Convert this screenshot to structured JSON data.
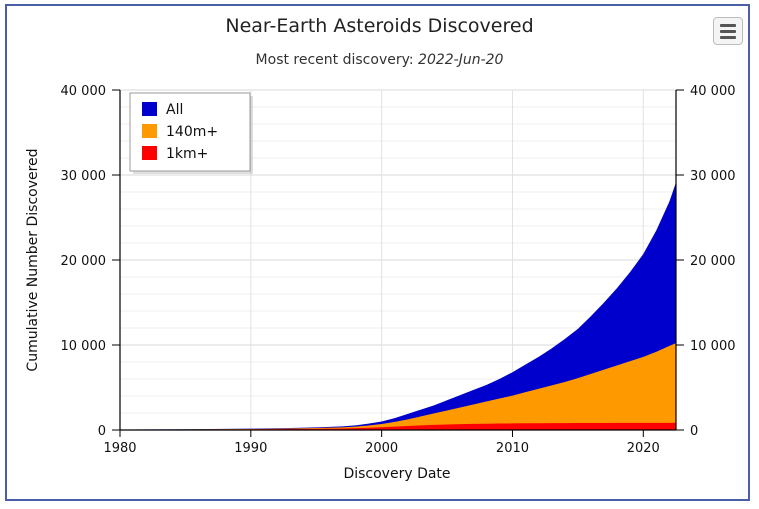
{
  "chart_data": {
    "type": "area",
    "title": "Near-Earth Asteroids Discovered",
    "subtitle_prefix": "Most recent discovery: ",
    "subtitle_date": "2022-Jun-20",
    "xlabel": "Discovery Date",
    "ylabel": "Cumulative Number Discovered",
    "xlim": [
      1980,
      2022.5
    ],
    "ylim": [
      0,
      40000
    ],
    "x_ticks": [
      1980,
      1990,
      2000,
      2010,
      2020
    ],
    "y_ticks": [
      0,
      10000,
      20000,
      30000,
      40000
    ],
    "y_tick_labels": [
      "0",
      "10 000",
      "20 000",
      "30 000",
      "40 000"
    ],
    "x_tick_labels": [
      "1980",
      "1990",
      "2000",
      "2010",
      "2020"
    ],
    "stacked": false,
    "legend_position": "top-left",
    "grid": true,
    "x": [
      1980,
      1985,
      1990,
      1993,
      1995,
      1997,
      1998,
      1999,
      2000,
      2001,
      2002,
      2003,
      2004,
      2005,
      2006,
      2007,
      2008,
      2009,
      2010,
      2011,
      2012,
      2013,
      2014,
      2015,
      2016,
      2017,
      2018,
      2019,
      2020,
      2021,
      2022,
      2022.47
    ],
    "series": [
      {
        "name": "All",
        "color": "#0000cc",
        "values": [
          50,
          90,
          160,
          230,
          310,
          420,
          550,
          750,
          1000,
          1400,
          1900,
          2400,
          2900,
          3500,
          4100,
          4700,
          5300,
          6000,
          6800,
          7700,
          8600,
          9600,
          10700,
          11900,
          13400,
          15000,
          16700,
          18600,
          20700,
          23500,
          26900,
          29000
        ]
      },
      {
        "name": "140m+",
        "color": "#ff9900",
        "values": [
          40,
          70,
          120,
          170,
          230,
          310,
          400,
          530,
          700,
          950,
          1250,
          1600,
          1950,
          2300,
          2650,
          3000,
          3350,
          3700,
          4050,
          4450,
          4850,
          5250,
          5650,
          6100,
          6600,
          7100,
          7600,
          8100,
          8600,
          9200,
          9900,
          10200
        ]
      },
      {
        "name": "1km+",
        "color": "#ff0000",
        "values": [
          30,
          50,
          80,
          110,
          140,
          180,
          220,
          270,
          330,
          400,
          470,
          540,
          600,
          650,
          690,
          720,
          740,
          760,
          775,
          790,
          800,
          810,
          815,
          820,
          825,
          830,
          835,
          838,
          840,
          842,
          845,
          847
        ]
      }
    ]
  }
}
